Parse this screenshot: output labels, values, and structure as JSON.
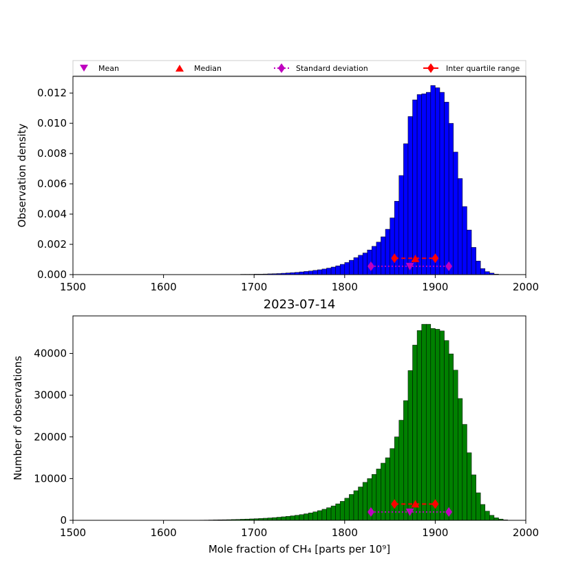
{
  "legend": {
    "mean": "Mean",
    "median": "Median",
    "std": "Standard deviation",
    "iqr": "Inter quartile range"
  },
  "colors": {
    "top_bars": "#0000ff",
    "bottom_bars": "#008000",
    "mean": "#bf00bf",
    "std": "#bf00bf",
    "median": "#ff0000",
    "iqr": "#ff0000"
  },
  "chart_data": [
    {
      "type": "bar",
      "title": "",
      "xlabel": "",
      "ylabel": "Observation density",
      "xlim": [
        1500,
        2000
      ],
      "ylim": [
        0,
        0.0131
      ],
      "xticks": [
        "1500",
        "1600",
        "1700",
        "1800",
        "1900",
        "2000"
      ],
      "yticks": [
        "0.000",
        "0.002",
        "0.004",
        "0.006",
        "0.008",
        "0.010",
        "0.012"
      ],
      "bin_width": 5,
      "bins_start": 1665,
      "values": [
        1e-05,
        1e-05,
        1e-05,
        1e-05,
        2e-05,
        2e-05,
        2e-05,
        3e-05,
        3e-05,
        4e-05,
        5e-05,
        6e-05,
        7e-05,
        9e-05,
        0.00011,
        0.00013,
        0.00015,
        0.00018,
        0.00021,
        0.00024,
        0.00028,
        0.00032,
        0.00037,
        0.00043,
        0.0005,
        0.00058,
        0.00068,
        0.0008,
        0.00095,
        0.00112,
        0.00128,
        0.00143,
        0.00163,
        0.00187,
        0.00215,
        0.0025,
        0.003,
        0.00375,
        0.00485,
        0.00655,
        0.00865,
        0.01045,
        0.01155,
        0.0119,
        0.01195,
        0.01205,
        0.0125,
        0.01235,
        0.01205,
        0.0114,
        0.01,
        0.0081,
        0.00635,
        0.0045,
        0.00295,
        0.0018,
        0.0009,
        0.0004,
        0.0002,
        0.0001,
        3e-05,
        1e-05,
        1e-05
      ],
      "stats": {
        "mean": 1872,
        "median": 1878,
        "std_range": [
          1829,
          1915
        ],
        "iqr_range": [
          1855,
          1900
        ],
        "mean_y": 0.00055,
        "median_y": 0.00105,
        "std_y": 0.00055,
        "iqr_y": 0.00108
      }
    },
    {
      "type": "bar",
      "title": "2023-07-14",
      "xlabel": "Mole fraction of CH₄ [parts per 10⁹]",
      "ylabel": "Number of observations",
      "xlim": [
        1500,
        2000
      ],
      "ylim": [
        0,
        49000
      ],
      "xticks": [
        "1500",
        "1600",
        "1700",
        "1800",
        "1900",
        "2000"
      ],
      "yticks": [
        "0",
        "10000",
        "20000",
        "30000",
        "40000"
      ],
      "bin_width": 5,
      "bins_start": 1640,
      "values": [
        50,
        60,
        80,
        100,
        120,
        140,
        160,
        190,
        220,
        260,
        300,
        340,
        390,
        440,
        500,
        570,
        650,
        740,
        840,
        950,
        1070,
        1210,
        1370,
        1560,
        1780,
        2030,
        2320,
        2650,
        3020,
        3450,
        3950,
        4550,
        5300,
        6200,
        7100,
        8000,
        9100,
        10000,
        11000,
        12300,
        13700,
        15000,
        17200,
        20000,
        24000,
        28700,
        35900,
        42000,
        45500,
        47000,
        47000,
        46000,
        45800,
        45400,
        43100,
        39900,
        36000,
        29200,
        23000,
        16200,
        10900,
        6600,
        3800,
        2200,
        1200,
        600,
        300,
        100
      ],
      "stats": {
        "mean": 1872,
        "median": 1878,
        "std_range": [
          1829,
          1915
        ],
        "iqr_range": [
          1855,
          1900
        ],
        "mean_y": 2000,
        "median_y": 3900,
        "std_y": 2000,
        "iqr_y": 3900
      }
    }
  ]
}
